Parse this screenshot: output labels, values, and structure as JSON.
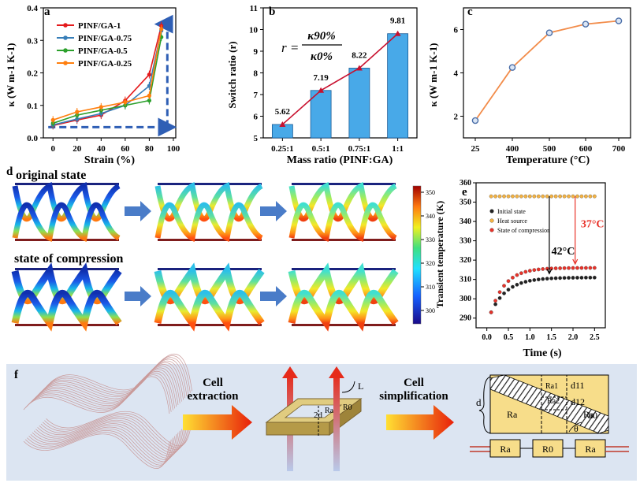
{
  "panels": {
    "a": {
      "letter": "a"
    },
    "b": {
      "letter": "b",
      "formula": {
        "lhs": "r =",
        "numerator": "κ90%",
        "denominator": "κ0%"
      }
    },
    "c": {
      "letter": "c"
    },
    "d": {
      "letter": "d",
      "original_label": "original state",
      "compression_label": "state of compression",
      "colorbar_ticks": [
        "350",
        "340",
        "330",
        "320",
        "310",
        "300"
      ]
    },
    "e": {
      "letter": "e",
      "anno_42": "42°C",
      "anno_37": "37°C"
    },
    "f": {
      "letter": "f",
      "step1_line1": "Cell",
      "step1_line2": "extraction",
      "step2_line1": "Cell",
      "step2_line2": "simplification",
      "cell": {
        "L": "L",
        "two_d": "2d",
        "Ra": "Ra",
        "R0": "R0"
      },
      "simplified": {
        "d": "d",
        "Ra": "Ra",
        "R0": "R0",
        "Ra1": "Ra1",
        "Ra2": "Ra2",
        "d11": "d11",
        "d12": "d12",
        "h0": "h0",
        "theta": "θ"
      }
    }
  },
  "colors": {
    "gf1": "#e41a1c",
    "gf075": "#377eb8",
    "gf05": "#2ca02c",
    "gf025": "#ff7f0e",
    "bar": "#48a9e8",
    "line_b": "#c8102e",
    "line_c": "#f28c4a",
    "e_initial": "#222222",
    "e_heat": "#f5b342",
    "e_comp": "#e8332a",
    "arrow_blue": "#4472c4"
  },
  "chart_data": [
    {
      "type": "line",
      "ylabel": "κ (W m-1 K-1)",
      "xlabel": "Strain (%)",
      "x": [
        0,
        20,
        40,
        60,
        80,
        90
      ],
      "xticks": [
        "0",
        "20",
        "40",
        "60",
        "80",
        "100"
      ],
      "yticks": [
        "0.0",
        "0.1",
        "0.2",
        "0.3",
        "0.4"
      ],
      "xlim": [
        -8,
        102
      ],
      "ylim": [
        0,
        0.4
      ],
      "series": [
        {
          "name": "PINF/GA-1",
          "color_key": "gf1",
          "values": [
            0.038,
            0.055,
            0.07,
            0.115,
            0.195,
            0.345
          ]
        },
        {
          "name": "PINF/GA-0.75",
          "color_key": "gf075",
          "values": [
            0.04,
            0.058,
            0.075,
            0.1,
            0.16,
            0.33
          ]
        },
        {
          "name": "PINF/GA-0.5",
          "color_key": "gf05",
          "values": [
            0.045,
            0.07,
            0.085,
            0.1,
            0.115,
            0.31
          ]
        },
        {
          "name": "PINF/GA-0.25",
          "color_key": "gf025",
          "values": [
            0.055,
            0.08,
            0.095,
            0.11,
            0.13,
            0.335
          ]
        }
      ],
      "guide": {
        "y_low": 0.033,
        "y_high": 0.35,
        "x_right": 95
      }
    },
    {
      "type": "bar",
      "ylabel": "Switch ratio (r)",
      "xlabel": "Mass ratio (PINF:GA)",
      "categories": [
        "0.25:1",
        "0.5:1",
        "0.75:1",
        "1:1"
      ],
      "values": [
        5.62,
        7.19,
        8.22,
        9.81
      ],
      "labels": [
        "5.62",
        "7.19",
        "8.22",
        "9.81"
      ],
      "yticks": [
        "5",
        "6",
        "7",
        "8",
        "9",
        "10",
        "11"
      ],
      "ylim": [
        5,
        11
      ]
    },
    {
      "type": "line",
      "ylabel": "κ (W m-1 K-1)",
      "xlabel": "Temperature (°C)",
      "x": [
        25,
        400,
        500,
        600,
        700
      ],
      "values": [
        1.8,
        4.25,
        5.85,
        6.25,
        6.4
      ],
      "xticks": [
        "25",
        "400",
        "500",
        "600",
        "700"
      ],
      "yticks": [
        "2",
        "4",
        "6"
      ],
      "ylim": [
        1,
        7
      ]
    },
    {
      "type": "scatter",
      "ylabel": "Transient temperature (K)",
      "xlabel": "Time (s)",
      "xticks": [
        "0.0",
        "0.5",
        "1.0",
        "1.5",
        "2.0",
        "2.5"
      ],
      "yticks": [
        "290",
        "300",
        "310",
        "320",
        "330",
        "340",
        "350",
        "360"
      ],
      "xlim": [
        -0.25,
        2.75
      ],
      "ylim": [
        285,
        360
      ],
      "series": [
        {
          "name": "Initial state",
          "color_key": "e_initial",
          "y_start": 293,
          "y_end": 311,
          "tau": 0.38
        },
        {
          "name": "Heat source",
          "color_key": "e_heat",
          "constant": 353
        },
        {
          "name": "State of compression",
          "color_key": "e_comp",
          "y_start": 293,
          "y_end": 316,
          "tau": 0.33
        }
      ]
    }
  ]
}
